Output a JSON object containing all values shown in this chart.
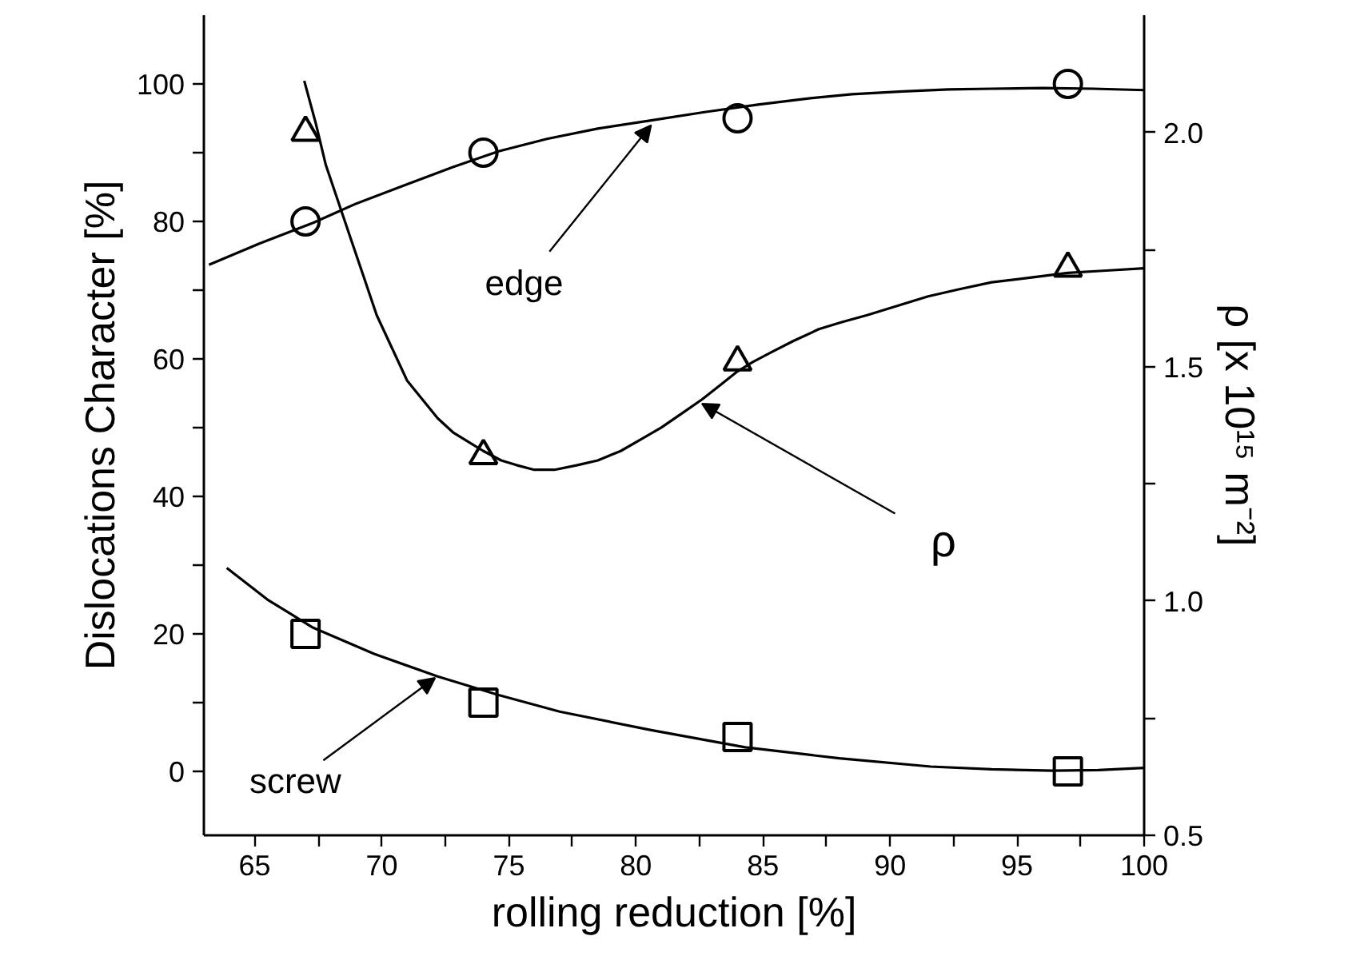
{
  "chart_data": {
    "type": "scatter",
    "xlabel": "rolling reduction [%]",
    "ylabel": "Dislocations Character [%]",
    "y2label": "ρ [x 10¹⁵ m⁻²]",
    "xlim": [
      63,
      100
    ],
    "ylim": [
      -9.3,
      110
    ],
    "y2lim": [
      0.5,
      2.25
    ],
    "xticks": [
      65,
      {
        "value": 67.5,
        "label": null
      },
      70,
      {
        "value": 72.5,
        "label": null
      },
      75,
      {
        "value": 77.5,
        "label": null
      },
      80,
      {
        "value": 82.5,
        "label": null
      },
      85,
      {
        "value": 87.5,
        "label": null
      },
      90,
      {
        "value": 92.5,
        "label": null
      },
      95,
      {
        "value": 97.5,
        "label": null
      },
      100
    ],
    "yticks": [
      0,
      {
        "value": 10,
        "label": null
      },
      20,
      {
        "value": 30,
        "label": null
      },
      40,
      {
        "value": 50,
        "label": null
      },
      60,
      {
        "value": 70,
        "label": null
      },
      80,
      {
        "value": 90,
        "label": null
      },
      100
    ],
    "y2ticks": [
      {
        "value": 0.5,
        "label": "0.5"
      },
      {
        "value": 0.75,
        "label": null
      },
      {
        "value": 1,
        "label": "1.0"
      },
      {
        "value": 1.25,
        "label": null
      },
      {
        "value": 1.5,
        "label": "1.5"
      },
      {
        "value": 1.75,
        "label": null
      },
      {
        "value": 2,
        "label": "2.0"
      }
    ],
    "grid": false,
    "series": [
      {
        "type": "line",
        "color": "#000000",
        "marker": "none",
        "x": [
          63.2,
          65.2,
          67.3,
          69.0,
          71.0,
          72.8,
          74.6,
          76.5,
          78.5,
          80.6,
          82.7,
          84.8,
          86.8,
          88.5,
          90.5,
          92.3,
          94.0,
          96.0,
          98.0,
          100
        ],
        "values": [
          73.7,
          76.8,
          79.8,
          82.6,
          85.4,
          87.9,
          90.2,
          92.0,
          93.5,
          94.7,
          95.9,
          97.0,
          97.9,
          98.5,
          98.9,
          99.2,
          99.3,
          99.4,
          99.3,
          99.1
        ]
      },
      {
        "type": "line",
        "color": "#000000",
        "marker": "none",
        "x": [
          63.9,
          65.5,
          67.3,
          69.7,
          72.2,
          74.6,
          77.0,
          80.6,
          84.3,
          88.0,
          91.6,
          94.0,
          96.4,
          98.2,
          100
        ],
        "values": [
          29.6,
          25.0,
          20.9,
          17.1,
          13.8,
          11.1,
          8.7,
          6.0,
          3.5,
          1.9,
          0.7,
          0.3,
          0.1,
          0.2,
          0.5
        ]
      },
      {
        "type": "line",
        "color": "#000000",
        "marker": "none",
        "axis": "y2",
        "x": [
          66.95,
          67.4,
          67.8,
          68.3,
          68.8,
          69.3,
          69.8,
          70.4,
          71.0,
          71.6,
          72.2,
          72.8,
          73.4,
          74.0,
          74.7,
          75.3,
          76.0,
          76.8,
          77.7,
          78.5,
          79.4,
          80.2,
          81.0,
          81.8,
          82.6,
          83.3,
          84.0,
          84.6,
          85.3,
          86.2,
          87.2,
          88.1,
          89.1,
          90.3,
          91.5,
          92.7,
          94.0,
          95.5,
          97.0,
          98.5,
          100
        ],
        "values": [
          2.11,
          2.02,
          1.93,
          1.85,
          1.77,
          1.69,
          1.61,
          1.54,
          1.47,
          1.43,
          1.39,
          1.36,
          1.34,
          1.32,
          1.3,
          1.29,
          1.28,
          1.28,
          1.29,
          1.3,
          1.32,
          1.345,
          1.37,
          1.4,
          1.43,
          1.46,
          1.49,
          1.51,
          1.53,
          1.555,
          1.58,
          1.595,
          1.61,
          1.63,
          1.65,
          1.665,
          1.68,
          1.69,
          1.7,
          1.705,
          1.71
        ]
      },
      {
        "color": "#000000",
        "marker": "circle",
        "x": [
          67,
          74,
          84,
          97
        ],
        "values": [
          80,
          90,
          95,
          100
        ]
      },
      {
        "color": "#000000",
        "marker": "square",
        "x": [
          67,
          74,
          84,
          97
        ],
        "values": [
          20,
          10,
          5,
          0
        ]
      },
      {
        "color": "#000000",
        "marker": "triangle",
        "axis": "y2",
        "x": [
          67,
          74,
          84,
          97
        ],
        "values": [
          2.0,
          1.31,
          1.51,
          1.71
        ]
      }
    ],
    "annotations": [
      {
        "text": "edge",
        "x": 80.6,
        "y": 94
      },
      {
        "text": "ρ",
        "x": 82.6,
        "y": 53.5
      },
      {
        "text": "screw",
        "x": 72.1,
        "y": 13.6
      }
    ]
  }
}
